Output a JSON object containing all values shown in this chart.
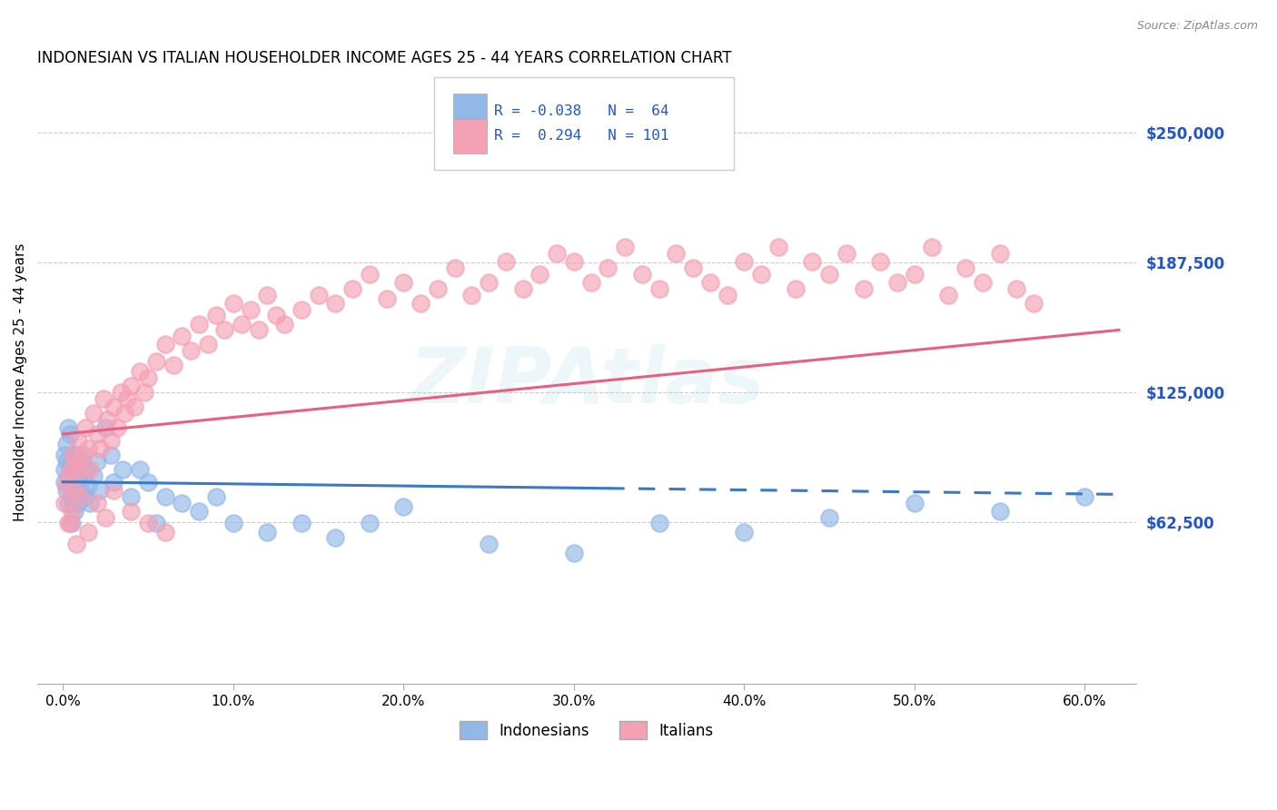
{
  "title": "INDONESIAN VS ITALIAN HOUSEHOLDER INCOME AGES 25 - 44 YEARS CORRELATION CHART",
  "source": "Source: ZipAtlas.com",
  "xlabel_ticks": [
    "0.0%",
    "10.0%",
    "20.0%",
    "30.0%",
    "40.0%",
    "50.0%",
    "60.0%"
  ],
  "xlabel_vals": [
    0.0,
    0.1,
    0.2,
    0.3,
    0.4,
    0.5,
    0.6
  ],
  "ylim": [
    0,
    275000
  ],
  "xlim": [
    -0.015,
    0.63
  ],
  "indonesian_R": "-0.038",
  "indonesian_N": "64",
  "italian_R": "0.294",
  "italian_N": "101",
  "indonesian_color": "#92b8e8",
  "italian_color": "#f4a0b5",
  "indonesian_line_color": "#3a78c9",
  "italian_line_color": "#e86080",
  "background_color": "#ffffff",
  "grid_color": "#cccccc",
  "watermark": "ZIPAtlas",
  "indo_line_y0": 82000,
  "indo_line_y1": 76000,
  "ital_line_y0": 105000,
  "ital_line_y1": 155000,
  "indonesian_x": [
    0.001,
    0.001,
    0.001,
    0.002,
    0.002,
    0.002,
    0.003,
    0.003,
    0.003,
    0.004,
    0.004,
    0.005,
    0.005,
    0.005,
    0.005,
    0.006,
    0.006,
    0.006,
    0.007,
    0.007,
    0.007,
    0.008,
    0.008,
    0.009,
    0.009,
    0.01,
    0.01,
    0.01,
    0.011,
    0.011,
    0.012,
    0.013,
    0.014,
    0.015,
    0.016,
    0.018,
    0.02,
    0.022,
    0.025,
    0.028,
    0.03,
    0.035,
    0.04,
    0.045,
    0.05,
    0.055,
    0.06,
    0.07,
    0.08,
    0.09,
    0.1,
    0.12,
    0.14,
    0.16,
    0.18,
    0.2,
    0.25,
    0.3,
    0.35,
    0.4,
    0.45,
    0.5,
    0.55,
    0.6
  ],
  "indonesian_y": [
    88000,
    82000,
    95000,
    100000,
    78000,
    92000,
    108000,
    85000,
    72000,
    105000,
    90000,
    95000,
    75000,
    88000,
    62000,
    80000,
    72000,
    92000,
    85000,
    95000,
    68000,
    78000,
    88000,
    72000,
    82000,
    95000,
    88000,
    75000,
    78000,
    92000,
    85000,
    75000,
    88000,
    80000,
    72000,
    85000,
    92000,
    78000,
    108000,
    95000,
    82000,
    88000,
    75000,
    88000,
    82000,
    62000,
    75000,
    72000,
    68000,
    75000,
    62000,
    58000,
    62000,
    55000,
    62000,
    70000,
    52000,
    48000,
    62000,
    58000,
    65000,
    72000,
    68000,
    75000
  ],
  "italian_x": [
    0.001,
    0.002,
    0.003,
    0.004,
    0.005,
    0.006,
    0.007,
    0.008,
    0.009,
    0.01,
    0.012,
    0.013,
    0.015,
    0.016,
    0.018,
    0.02,
    0.022,
    0.024,
    0.026,
    0.028,
    0.03,
    0.032,
    0.034,
    0.036,
    0.038,
    0.04,
    0.042,
    0.045,
    0.048,
    0.05,
    0.055,
    0.06,
    0.065,
    0.07,
    0.075,
    0.08,
    0.085,
    0.09,
    0.095,
    0.1,
    0.105,
    0.11,
    0.115,
    0.12,
    0.125,
    0.13,
    0.14,
    0.15,
    0.16,
    0.17,
    0.18,
    0.19,
    0.2,
    0.21,
    0.22,
    0.23,
    0.24,
    0.25,
    0.26,
    0.27,
    0.28,
    0.29,
    0.3,
    0.31,
    0.32,
    0.33,
    0.34,
    0.35,
    0.36,
    0.37,
    0.38,
    0.39,
    0.4,
    0.41,
    0.42,
    0.43,
    0.44,
    0.45,
    0.46,
    0.47,
    0.48,
    0.49,
    0.5,
    0.51,
    0.52,
    0.53,
    0.54,
    0.55,
    0.56,
    0.57,
    0.003,
    0.005,
    0.008,
    0.01,
    0.015,
    0.02,
    0.025,
    0.03,
    0.04,
    0.05,
    0.06
  ],
  "italian_y": [
    72000,
    80000,
    85000,
    62000,
    88000,
    95000,
    78000,
    92000,
    102000,
    88000,
    95000,
    108000,
    98000,
    88000,
    115000,
    105000,
    98000,
    122000,
    112000,
    102000,
    118000,
    108000,
    125000,
    115000,
    122000,
    128000,
    118000,
    135000,
    125000,
    132000,
    140000,
    148000,
    138000,
    152000,
    145000,
    158000,
    148000,
    162000,
    155000,
    168000,
    158000,
    165000,
    155000,
    172000,
    162000,
    158000,
    165000,
    172000,
    168000,
    175000,
    182000,
    170000,
    178000,
    168000,
    175000,
    185000,
    172000,
    178000,
    188000,
    175000,
    182000,
    192000,
    188000,
    178000,
    185000,
    195000,
    182000,
    175000,
    192000,
    185000,
    178000,
    172000,
    188000,
    182000,
    195000,
    175000,
    188000,
    182000,
    192000,
    175000,
    188000,
    178000,
    182000,
    195000,
    172000,
    185000,
    178000,
    192000,
    175000,
    168000,
    62000,
    68000,
    52000,
    75000,
    58000,
    72000,
    65000,
    78000,
    68000,
    62000,
    58000
  ]
}
